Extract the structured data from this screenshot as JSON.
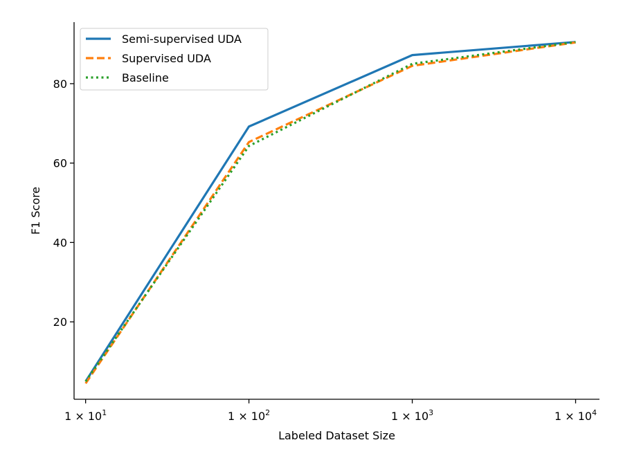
{
  "chart_data": {
    "type": "line",
    "x_scale": "log",
    "x": [
      10,
      100,
      1000,
      10000
    ],
    "xlabel": "Labeled Dataset Size",
    "ylabel": "F1 Score",
    "xlim": [
      8.5,
      14000
    ],
    "ylim": [
      0.5,
      95.5
    ],
    "x_ticks": [
      {
        "value": 10,
        "base": "1 × 10",
        "exp": "1"
      },
      {
        "value": 100,
        "base": "1 × 10",
        "exp": "2"
      },
      {
        "value": 1000,
        "base": "1 × 10",
        "exp": "3"
      },
      {
        "value": 10000,
        "base": "1 × 10",
        "exp": "4"
      }
    ],
    "y_ticks": [
      20,
      40,
      60,
      80
    ],
    "grid": false,
    "legend_position": "top-left",
    "series": [
      {
        "name": "Semi-supervised UDA",
        "values": [
          5.0,
          69.2,
          87.2,
          90.5
        ],
        "color": "#1f77b4",
        "style": "solid"
      },
      {
        "name": "Supervised UDA",
        "values": [
          4.5,
          65.3,
          84.5,
          90.4
        ],
        "color": "#ff7f0e",
        "style": "dashed"
      },
      {
        "name": "Baseline",
        "values": [
          5.0,
          64.3,
          85.0,
          90.5
        ],
        "color": "#2ca02c",
        "style": "dotted"
      }
    ]
  }
}
